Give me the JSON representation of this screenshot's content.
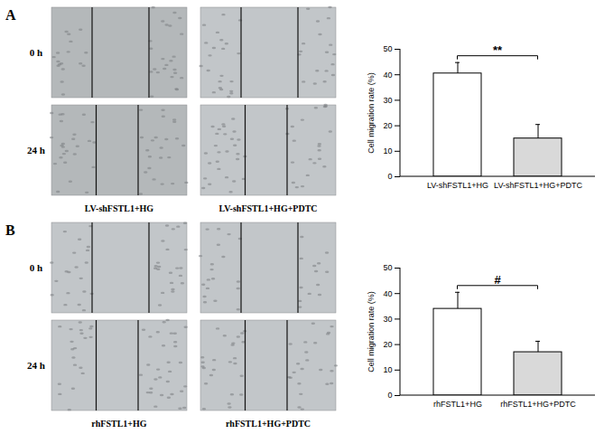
{
  "panels": [
    {
      "label": "A",
      "rows": [
        "0 h",
        "24 h"
      ],
      "columns": [
        "LV-shFSTL1+HG",
        "LV-shFSTL1+HG+PDTC"
      ]
    },
    {
      "label": "B",
      "rows": [
        "0 h",
        "24 h"
      ],
      "columns": [
        "rhFSTL1+HG",
        "rhFSTL1+HG+PDTC"
      ]
    }
  ],
  "chart_data": [
    {
      "type": "bar",
      "ylabel": "Cell migration rate (%)",
      "categories": [
        "LV-shFSTL1+HG",
        "LV-shFSTL1+HG+PDTC"
      ],
      "values": [
        40.5,
        15
      ],
      "errors": [
        4.3,
        5.5
      ],
      "colors": [
        "#ffffff",
        "#d9d9d9"
      ],
      "ylim": [
        0,
        50
      ],
      "yticks": [
        0,
        10,
        20,
        30,
        40,
        50
      ],
      "annotation": "**"
    },
    {
      "type": "bar",
      "ylabel": "Cell migration rate (%)",
      "categories": [
        "rhFSTL1+HG",
        "rhFSTL1+HG+PDTC"
      ],
      "values": [
        34,
        17
      ],
      "errors": [
        6.5,
        4.3
      ],
      "colors": [
        "#ffffff",
        "#d9d9d9"
      ],
      "ylim": [
        0,
        50
      ],
      "yticks": [
        0,
        10,
        20,
        30,
        40,
        50
      ],
      "annotation": "#"
    }
  ]
}
